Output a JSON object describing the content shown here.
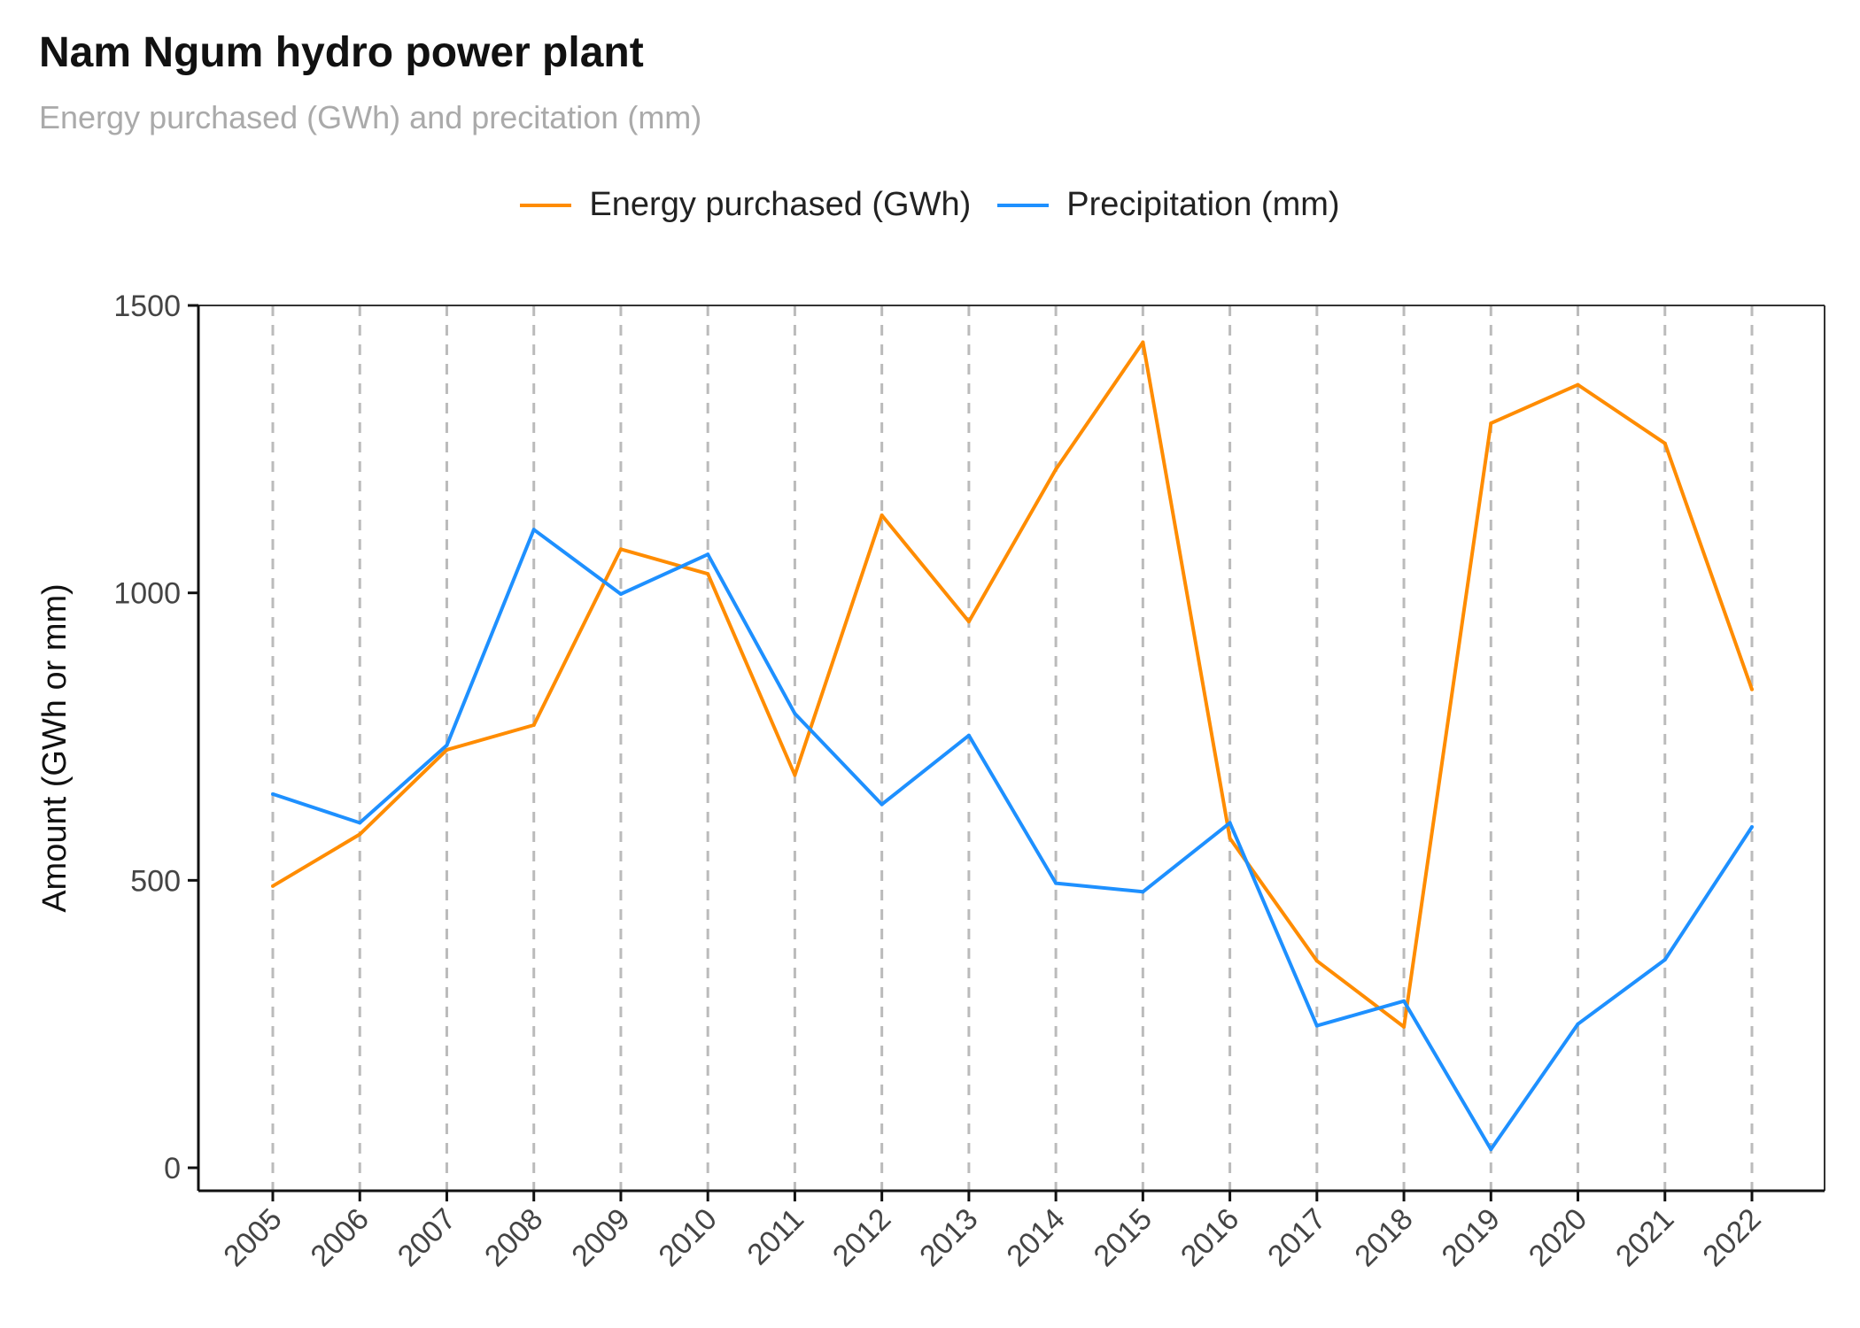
{
  "chart_data": {
    "type": "line",
    "title": "Nam Ngum hydro power plant",
    "subtitle": "Energy purchased (GWh) and precitation (mm)",
    "xlabel": "",
    "ylabel": "Amount (GWh or mm)",
    "ylim": [
      -40,
      1500
    ],
    "yticks": [
      0,
      500,
      1000,
      1500
    ],
    "grid": "vertical dashed",
    "legend_position": "top",
    "x": [
      "2005",
      "2006",
      "2007",
      "2008",
      "2009",
      "2010",
      "2011",
      "2012",
      "2013",
      "2014",
      "2015",
      "2016",
      "2017",
      "2018",
      "2019",
      "2020",
      "2021",
      "2022"
    ],
    "series": [
      {
        "name": "Energy purchased (GWh)",
        "color": "#ff8c00",
        "values": [
          490,
          580,
          727,
          770,
          1076,
          1033,
          683,
          1135,
          950,
          1215,
          1436,
          573,
          360,
          245,
          1295,
          1362,
          1260,
          832
        ]
      },
      {
        "name": "Precipitation (mm)",
        "color": "#1e90ff",
        "values": [
          650,
          600,
          735,
          1110,
          998,
          1067,
          790,
          632,
          752,
          495,
          480,
          600,
          247,
          290,
          32,
          250,
          362,
          593
        ]
      }
    ]
  }
}
